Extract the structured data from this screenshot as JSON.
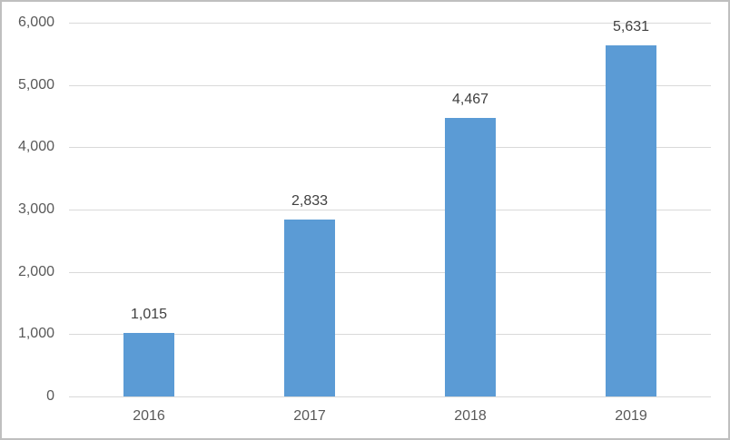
{
  "chart_data": {
    "type": "bar",
    "title": "",
    "xlabel": "",
    "ylabel": "",
    "categories": [
      "2016",
      "2017",
      "2018",
      "2019"
    ],
    "values": [
      1015,
      2833,
      4467,
      5631
    ],
    "data_labels": [
      "1,015",
      "2,833",
      "4,467",
      "5,631"
    ],
    "y_ticks": [
      0,
      1000,
      2000,
      3000,
      4000,
      5000,
      6000
    ],
    "y_tick_labels": [
      "0",
      "1,000",
      "2,000",
      "3,000",
      "4,000",
      "5,000",
      "6,000"
    ],
    "ylim": [
      0,
      6000
    ],
    "grid": "horizontal",
    "legend": "none",
    "colors": {
      "bar": "#5B9BD5",
      "gridline": "#D9D9D9",
      "axis_line": "#D9D9D9",
      "axis_label": "#595959",
      "data_label": "#404040",
      "background": "#FFFFFF",
      "border": "#BFBFBF"
    }
  }
}
